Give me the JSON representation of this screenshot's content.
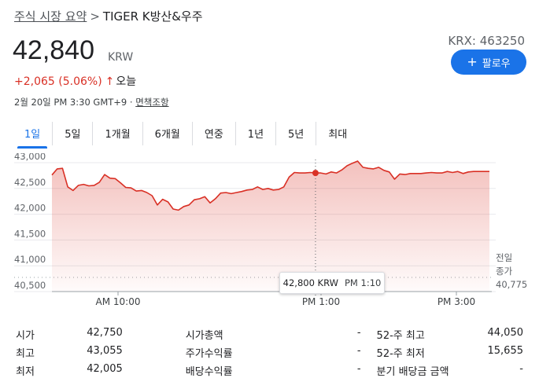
{
  "breadcrumb": {
    "parent": "주식 시장 요약",
    "separator": ">",
    "current": "TIGER K방산&우주"
  },
  "quote": {
    "price": "42,840",
    "currency": "KRW",
    "change": "+2,065 (5.06%)",
    "change_arrow": "↑",
    "period": "오늘",
    "timestamp": "2월 20일 PM 3:30 GMT+9 · ",
    "disclaimer": "면책조항",
    "exchange_ticker": "KRX: 463250",
    "up_color": "#d93025"
  },
  "follow_button": {
    "icon": "plus-icon",
    "label": "팔로우",
    "color": "#1a73e8"
  },
  "tabs": [
    {
      "label": "1일",
      "active": true
    },
    {
      "label": "5일"
    },
    {
      "label": "1개월"
    },
    {
      "label": "6개월"
    },
    {
      "label": "연중"
    },
    {
      "label": "1년"
    },
    {
      "label": "5년"
    },
    {
      "label": "최대"
    }
  ],
  "chart_data": {
    "type": "area",
    "y_ticks": [
      "43,000",
      "42,500",
      "42,000",
      "41,500",
      "41,000",
      "40,500"
    ],
    "ylim": [
      40500,
      43000
    ],
    "x_ticks": [
      "AM 10:00",
      "PM 1:00",
      "PM 3:00"
    ],
    "previous_close": {
      "label_line1": "전일",
      "label_line2": "종가",
      "value": 40775
    },
    "previous_close_text": "40,775",
    "series": [
      {
        "color": "#d93025",
        "values": [
          42760,
          42880,
          42890,
          42530,
          42460,
          42560,
          42580,
          42550,
          42560,
          42620,
          42770,
          42700,
          42690,
          42610,
          42520,
          42510,
          42450,
          42460,
          42420,
          42360,
          42180,
          42290,
          42240,
          42100,
          42080,
          42150,
          42180,
          42280,
          42300,
          42340,
          42220,
          42300,
          42410,
          42420,
          42400,
          42420,
          42440,
          42470,
          42480,
          42530,
          42480,
          42500,
          42470,
          42480,
          42530,
          42720,
          42810,
          42800,
          42800,
          42810,
          42800,
          42800,
          42780,
          42820,
          42800,
          42860,
          42940,
          42990,
          43030,
          42910,
          42890,
          42880,
          42910,
          42850,
          42820,
          42680,
          42780,
          42770,
          42790,
          42790,
          42790,
          42800,
          42810,
          42800,
          42800,
          42830,
          42810,
          42830,
          42790,
          42820,
          42830,
          42830,
          42830,
          42830
        ]
      }
    ],
    "highlight_point": {
      "value": 42800,
      "label": "42,800 KRW",
      "time": "PM 1:10"
    },
    "grid": true
  },
  "stats": [
    [
      [
        "시가",
        "42,750"
      ],
      [
        "시가총액",
        "-"
      ],
      [
        "52-주 최고",
        "44,050"
      ]
    ],
    [
      [
        "최고",
        "43,055"
      ],
      [
        "주가수익률",
        "-"
      ],
      [
        "52-주 최저",
        "15,655"
      ]
    ],
    [
      [
        "최저",
        "42,005"
      ],
      [
        "배당수익률",
        "-"
      ],
      [
        "분기 배당금 금액",
        "-"
      ]
    ]
  ]
}
